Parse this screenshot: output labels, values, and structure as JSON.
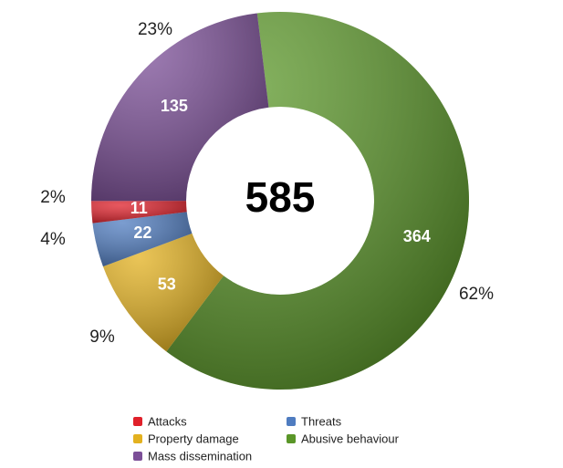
{
  "chart_data": {
    "type": "donut",
    "total": 585,
    "series": [
      {
        "name": "Abusive behaviour",
        "color": "#5a9628",
        "value": 364,
        "percent_label": "62%"
      },
      {
        "name": "Property damage",
        "color": "#e3b11f",
        "value": 53,
        "percent_label": "9%"
      },
      {
        "name": "Threats",
        "color": "#4f7cc0",
        "value": 22,
        "percent_label": "4%"
      },
      {
        "name": "Attacks",
        "color": "#e0202a",
        "value": 11,
        "percent_label": "2%"
      },
      {
        "name": "Mass dissemination",
        "color": "#7c4f98",
        "value": 135,
        "percent_label": "23%"
      }
    ]
  }
}
